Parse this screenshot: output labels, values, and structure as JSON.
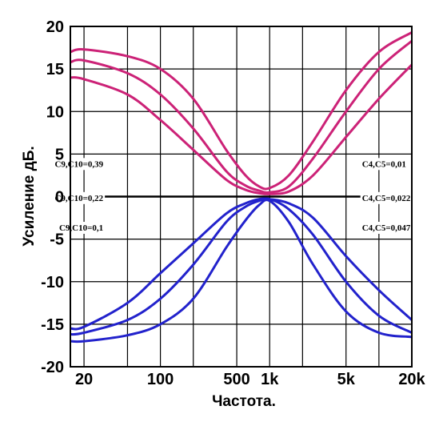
{
  "chart_data": {
    "type": "line",
    "title": "",
    "xlabel": "Частота.",
    "ylabel": "Усиление дБ.",
    "xscale": "log",
    "xlim": [
      15,
      20000
    ],
    "ylim": [
      -20,
      20
    ],
    "grid": true,
    "x_ticks": [
      {
        "value": 20,
        "label": "20"
      },
      {
        "value": 100,
        "label": "100"
      },
      {
        "value": 500,
        "label": "500"
      },
      {
        "value": 1000,
        "label": "1k"
      },
      {
        "value": 5000,
        "label": "5k"
      },
      {
        "value": 20000,
        "label": "20k"
      }
    ],
    "y_ticks": [
      {
        "value": 20,
        "label": "20"
      },
      {
        "value": 15,
        "label": "15"
      },
      {
        "value": 10,
        "label": "10"
      },
      {
        "value": 5,
        "label": "5"
      },
      {
        "value": 0,
        "label": "0"
      },
      {
        "value": -5,
        "label": "-5"
      },
      {
        "value": -10,
        "label": "-10"
      },
      {
        "value": -15,
        "label": "-15"
      },
      {
        "value": -20,
        "label": "-20"
      }
    ],
    "series": [
      {
        "color": "#cc2277",
        "points": [
          [
            15,
            17
          ],
          [
            20,
            17.3
          ],
          [
            50,
            16.5
          ],
          [
            100,
            15
          ],
          [
            200,
            11.5
          ],
          [
            400,
            5.5
          ],
          [
            600,
            2.5
          ],
          [
            800,
            1.2
          ],
          [
            1000,
            1
          ],
          [
            1500,
            2.5
          ],
          [
            2500,
            6.5
          ],
          [
            5000,
            12.5
          ],
          [
            10000,
            17
          ],
          [
            20000,
            19.3
          ]
        ]
      },
      {
        "color": "#cc2277",
        "points": [
          [
            15,
            15.8
          ],
          [
            20,
            16
          ],
          [
            50,
            14.5
          ],
          [
            100,
            12
          ],
          [
            200,
            8
          ],
          [
            400,
            3
          ],
          [
            600,
            1.3
          ],
          [
            800,
            0.7
          ],
          [
            1000,
            0.5
          ],
          [
            1500,
            1.2
          ],
          [
            2500,
            4.5
          ],
          [
            5000,
            10
          ],
          [
            10000,
            15
          ],
          [
            20000,
            18.3
          ]
        ]
      },
      {
        "color": "#cc2277",
        "points": [
          [
            15,
            14
          ],
          [
            20,
            13.8
          ],
          [
            50,
            12
          ],
          [
            100,
            9
          ],
          [
            200,
            5.5
          ],
          [
            400,
            2
          ],
          [
            600,
            0.8
          ],
          [
            800,
            0.4
          ],
          [
            1000,
            0.3
          ],
          [
            1500,
            0.6
          ],
          [
            2500,
            2.5
          ],
          [
            5000,
            7
          ],
          [
            10000,
            11.5
          ],
          [
            20000,
            15.5
          ]
        ]
      },
      {
        "color": "#2222cc",
        "points": [
          [
            15,
            -15.5
          ],
          [
            20,
            -15.3
          ],
          [
            50,
            -12.5
          ],
          [
            100,
            -9
          ],
          [
            200,
            -5.5
          ],
          [
            400,
            -2
          ],
          [
            600,
            -0.8
          ],
          [
            800,
            -0.3
          ],
          [
            1000,
            -0.3
          ],
          [
            1500,
            -0.8
          ],
          [
            2500,
            -2.5
          ],
          [
            5000,
            -7
          ],
          [
            10000,
            -11
          ],
          [
            20000,
            -14.5
          ]
        ]
      },
      {
        "color": "#2222cc",
        "points": [
          [
            15,
            -16.2
          ],
          [
            20,
            -16
          ],
          [
            50,
            -14.5
          ],
          [
            100,
            -12
          ],
          [
            200,
            -8
          ],
          [
            400,
            -3
          ],
          [
            600,
            -1.2
          ],
          [
            800,
            -0.5
          ],
          [
            1000,
            -0.3
          ],
          [
            1500,
            -1.5
          ],
          [
            2500,
            -4.5
          ],
          [
            5000,
            -10
          ],
          [
            10000,
            -14
          ],
          [
            20000,
            -16
          ]
        ]
      },
      {
        "color": "#2222cc",
        "points": [
          [
            15,
            -17
          ],
          [
            20,
            -17
          ],
          [
            50,
            -16.3
          ],
          [
            100,
            -15
          ],
          [
            200,
            -12
          ],
          [
            400,
            -6
          ],
          [
            600,
            -2.8
          ],
          [
            800,
            -1
          ],
          [
            1000,
            -0.5
          ],
          [
            1500,
            -3
          ],
          [
            2500,
            -8
          ],
          [
            5000,
            -13.5
          ],
          [
            10000,
            -16
          ],
          [
            20000,
            -16.5
          ]
        ]
      }
    ],
    "annotations": [
      {
        "text": "C9,C10=0,39",
        "anchor": "end",
        "tx": 30,
        "ty": 3.5
      },
      {
        "text": "C9,C10=0,22",
        "anchor": "end",
        "tx": 30,
        "ty": -0.5
      },
      {
        "text": "C9,C10=0,1",
        "anchor": "end",
        "tx": 30,
        "ty": -4
      },
      {
        "text": "C4,C5=0,01",
        "anchor": "start",
        "tx": 7000,
        "ty": 3.5
      },
      {
        "text": "C4,C5=0,022",
        "anchor": "start",
        "tx": 7000,
        "ty": -0.5
      },
      {
        "text": "C4,C5=0,047",
        "anchor": "start",
        "tx": 7000,
        "ty": -4
      }
    ]
  }
}
